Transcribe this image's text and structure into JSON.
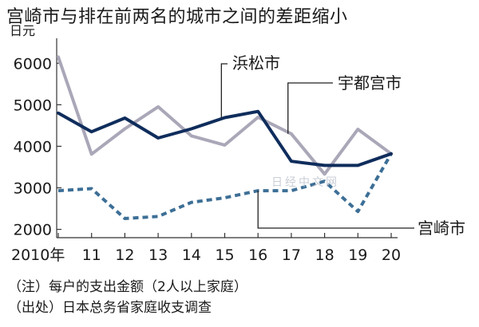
{
  "header": {
    "title": "宫崎市与排在前两名的城市之间的差距缩小"
  },
  "chart_data": {
    "type": "line",
    "yunit": "日元",
    "x_tick_labels": [
      "2010年",
      "11",
      "12",
      "13",
      "14",
      "15",
      "16",
      "17",
      "18",
      "19",
      "20"
    ],
    "x": [
      2010,
      2011,
      2012,
      2013,
      2014,
      2015,
      2016,
      2017,
      2018,
      2019,
      2020
    ],
    "ylim": [
      1800,
      6600
    ],
    "yticks": [
      2000,
      3000,
      4000,
      5000,
      6000
    ],
    "series": [
      {
        "name": "浜松市",
        "color": "#0f2d5c",
        "style": "solid",
        "values": [
          4800,
          4350,
          4680,
          4200,
          4420,
          4690,
          4840,
          3640,
          3540,
          3540,
          3820
        ]
      },
      {
        "name": "宇都宫市",
        "color": "#aaa7b8",
        "style": "solid",
        "values": [
          6150,
          3810,
          4420,
          4950,
          4250,
          4030,
          4700,
          4300,
          3330,
          4410,
          3820
        ]
      },
      {
        "name": "宫崎市",
        "color": "#3d6f96",
        "style": "dashed",
        "values": [
          2930,
          2980,
          2260,
          2310,
          2650,
          2760,
          2930,
          2930,
          3160,
          2430,
          3820
        ]
      }
    ]
  },
  "watermark": "日经中文网",
  "notes": {
    "note": "（注）每户的支出金额（2人以上家庭）",
    "source": "（出处）日本总务省家庭收支调查"
  }
}
